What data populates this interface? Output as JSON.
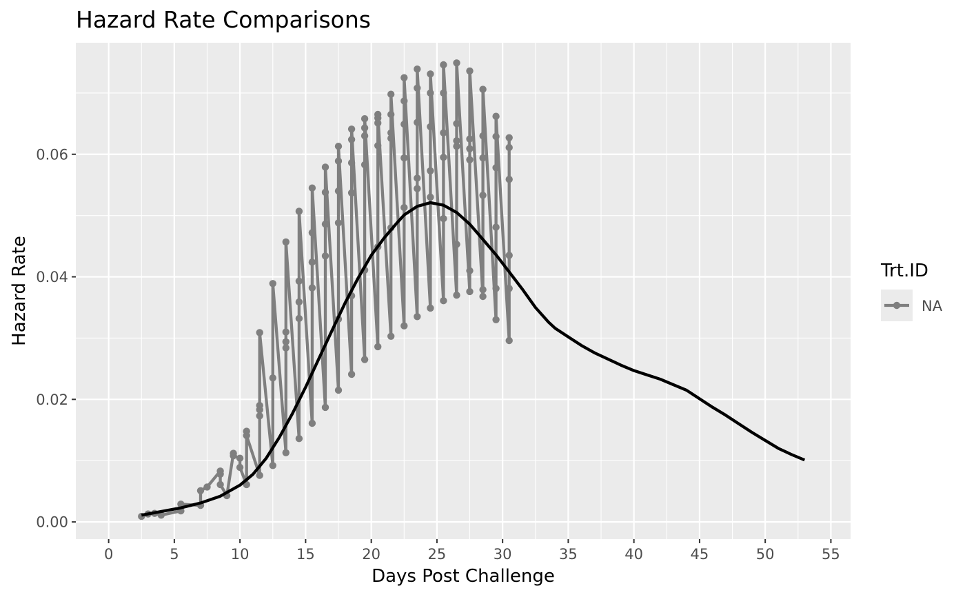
{
  "chart_data": {
    "type": "line",
    "title": "Hazard Rate Comparisons",
    "xlabel": "Days Post Challenge",
    "ylabel": "Hazard Rate",
    "xlim": [
      -2.5,
      56.5
    ],
    "ylim": [
      -0.0028,
      0.0782
    ],
    "x_ticks": [
      0,
      5,
      10,
      15,
      20,
      25,
      30,
      35,
      40,
      45,
      50,
      55
    ],
    "x_tick_labels": [
      "0",
      "5",
      "10",
      "15",
      "20",
      "25",
      "30",
      "35",
      "40",
      "45",
      "50",
      "55"
    ],
    "y_ticks": [
      0,
      0.02,
      0.04,
      0.06
    ],
    "y_tick_labels": [
      "0.00",
      "0.02",
      "0.04",
      "0.06"
    ],
    "grid": true,
    "background": "#ebebeb",
    "legend": {
      "title": "Trt.ID",
      "position": "right",
      "entries": [
        "NA"
      ]
    },
    "series": [
      {
        "name": "NA",
        "style": "line+points",
        "color": "#7f7f7f",
        "points": [
          [
            2.5,
            0.0009
          ],
          [
            3.0,
            0.0013
          ],
          [
            3.5,
            0.0014
          ],
          [
            4.0,
            0.0011
          ],
          [
            5.5,
            0.0018
          ],
          [
            5.5,
            0.0029
          ],
          [
            7.0,
            0.0027
          ],
          [
            7.0,
            0.0051
          ],
          [
            7.5,
            0.0057
          ],
          [
            8.5,
            0.0083
          ],
          [
            8.5,
            0.0078
          ],
          [
            8.5,
            0.0061
          ],
          [
            9.0,
            0.0043
          ],
          [
            9.5,
            0.0112
          ],
          [
            9.5,
            0.0108
          ],
          [
            10.0,
            0.0104
          ],
          [
            10.0,
            0.0089
          ],
          [
            10.5,
            0.0061
          ],
          [
            10.5,
            0.0148
          ],
          [
            10.5,
            0.0141
          ],
          [
            11.5,
            0.0076
          ],
          [
            11.5,
            0.0173
          ],
          [
            11.5,
            0.0183
          ],
          [
            11.5,
            0.019
          ],
          [
            11.5,
            0.0309
          ],
          [
            12.5,
            0.0092
          ],
          [
            12.5,
            0.0235
          ],
          [
            12.5,
            0.0389
          ],
          [
            13.5,
            0.0113
          ],
          [
            13.5,
            0.0284
          ],
          [
            13.5,
            0.0294
          ],
          [
            13.5,
            0.031
          ],
          [
            13.5,
            0.0457
          ],
          [
            14.5,
            0.0136
          ],
          [
            14.5,
            0.0332
          ],
          [
            14.5,
            0.0359
          ],
          [
            14.5,
            0.0393
          ],
          [
            14.5,
            0.0507
          ],
          [
            15.5,
            0.0161
          ],
          [
            15.5,
            0.0382
          ],
          [
            15.5,
            0.0424
          ],
          [
            15.5,
            0.0472
          ],
          [
            15.5,
            0.0545
          ],
          [
            16.5,
            0.0187
          ],
          [
            16.5,
            0.0434
          ],
          [
            16.5,
            0.0486
          ],
          [
            16.5,
            0.0538
          ],
          [
            16.5,
            0.0579
          ],
          [
            17.5,
            0.0215
          ],
          [
            17.5,
            0.0331
          ],
          [
            17.5,
            0.0488
          ],
          [
            17.5,
            0.054
          ],
          [
            17.5,
            0.0589
          ],
          [
            17.5,
            0.0613
          ],
          [
            18.5,
            0.0241
          ],
          [
            18.5,
            0.0369
          ],
          [
            18.5,
            0.0537
          ],
          [
            18.5,
            0.0586
          ],
          [
            18.5,
            0.0624
          ],
          [
            18.5,
            0.0641
          ],
          [
            19.5,
            0.0265
          ],
          [
            19.5,
            0.0411
          ],
          [
            19.5,
            0.0583
          ],
          [
            19.5,
            0.063
          ],
          [
            19.5,
            0.0643
          ],
          [
            19.5,
            0.0658
          ],
          [
            20.5,
            0.0286
          ],
          [
            20.5,
            0.0449
          ],
          [
            20.5,
            0.0614
          ],
          [
            20.5,
            0.0651
          ],
          [
            20.5,
            0.0659
          ],
          [
            20.5,
            0.0665
          ],
          [
            21.5,
            0.0303
          ],
          [
            21.5,
            0.048
          ],
          [
            21.5,
            0.0626
          ],
          [
            21.5,
            0.0635
          ],
          [
            21.5,
            0.0665
          ],
          [
            21.5,
            0.0698
          ],
          [
            22.5,
            0.032
          ],
          [
            22.5,
            0.0513
          ],
          [
            22.5,
            0.0594
          ],
          [
            22.5,
            0.0649
          ],
          [
            22.5,
            0.0687
          ],
          [
            22.5,
            0.0725
          ],
          [
            23.5,
            0.0335
          ],
          [
            23.5,
            0.0544
          ],
          [
            23.5,
            0.0561
          ],
          [
            23.5,
            0.0652
          ],
          [
            23.5,
            0.0708
          ],
          [
            23.5,
            0.0739
          ],
          [
            24.5,
            0.0349
          ],
          [
            24.5,
            0.053
          ],
          [
            24.5,
            0.0573
          ],
          [
            24.5,
            0.0645
          ],
          [
            24.5,
            0.07
          ],
          [
            24.5,
            0.0731
          ],
          [
            25.5,
            0.0361
          ],
          [
            25.5,
            0.0495
          ],
          [
            25.5,
            0.0595
          ],
          [
            25.5,
            0.0635
          ],
          [
            25.5,
            0.07
          ],
          [
            25.5,
            0.0746
          ],
          [
            26.5,
            0.037
          ],
          [
            26.5,
            0.0453
          ],
          [
            26.5,
            0.0613
          ],
          [
            26.5,
            0.0622
          ],
          [
            26.5,
            0.065
          ],
          [
            26.5,
            0.0749
          ],
          [
            27.5,
            0.0376
          ],
          [
            27.5,
            0.041
          ],
          [
            27.5,
            0.0591
          ],
          [
            27.5,
            0.0609
          ],
          [
            27.5,
            0.0625
          ],
          [
            27.5,
            0.0736
          ],
          [
            28.5,
            0.0368
          ],
          [
            28.5,
            0.0379
          ],
          [
            28.5,
            0.0533
          ],
          [
            28.5,
            0.0594
          ],
          [
            28.5,
            0.063
          ],
          [
            28.5,
            0.0706
          ],
          [
            29.5,
            0.033
          ],
          [
            29.5,
            0.0381
          ],
          [
            29.5,
            0.0481
          ],
          [
            29.5,
            0.0578
          ],
          [
            29.5,
            0.0629
          ],
          [
            29.5,
            0.0662
          ],
          [
            30.5,
            0.0296
          ],
          [
            30.5,
            0.0381
          ],
          [
            30.5,
            0.0435
          ],
          [
            30.5,
            0.0559
          ],
          [
            30.5,
            0.0611
          ],
          [
            30.5,
            0.0627
          ]
        ]
      },
      {
        "name": "",
        "style": "smooth-line",
        "color": "#000000",
        "points": [
          [
            2.5,
            0.0011
          ],
          [
            4.0,
            0.0017
          ],
          [
            5.5,
            0.0023
          ],
          [
            7.0,
            0.0031
          ],
          [
            8.5,
            0.0042
          ],
          [
            10.0,
            0.006
          ],
          [
            11.0,
            0.0078
          ],
          [
            12.0,
            0.0104
          ],
          [
            13.0,
            0.0138
          ],
          [
            14.0,
            0.0177
          ],
          [
            15.0,
            0.022
          ],
          [
            16.0,
            0.0266
          ],
          [
            17.0,
            0.0312
          ],
          [
            18.0,
            0.0357
          ],
          [
            19.0,
            0.0398
          ],
          [
            20.0,
            0.0435
          ],
          [
            21.0,
            0.0464
          ],
          [
            22.0,
            0.0489
          ],
          [
            22.5,
            0.0501
          ],
          [
            23.5,
            0.0515
          ],
          [
            24.5,
            0.0521
          ],
          [
            25.5,
            0.0517
          ],
          [
            26.5,
            0.0505
          ],
          [
            27.5,
            0.0486
          ],
          [
            28.5,
            0.0461
          ],
          [
            29.5,
            0.0436
          ],
          [
            30.5,
            0.0408
          ],
          [
            31.5,
            0.038
          ],
          [
            32.5,
            0.035
          ],
          [
            33.5,
            0.0326
          ],
          [
            34.0,
            0.0316
          ],
          [
            35.0,
            0.0302
          ],
          [
            36.0,
            0.0288
          ],
          [
            37.0,
            0.0276
          ],
          [
            38.0,
            0.0266
          ],
          [
            39.0,
            0.0256
          ],
          [
            40.0,
            0.0247
          ],
          [
            41.0,
            0.024
          ],
          [
            42.0,
            0.0233
          ],
          [
            43.0,
            0.0224
          ],
          [
            44.0,
            0.0215
          ],
          [
            45.0,
            0.0201
          ],
          [
            46.0,
            0.0187
          ],
          [
            47.0,
            0.0174
          ],
          [
            48.0,
            0.016
          ],
          [
            49.0,
            0.0146
          ],
          [
            50.0,
            0.0133
          ],
          [
            51.0,
            0.012
          ],
          [
            52.0,
            0.011
          ],
          [
            53.0,
            0.0101
          ]
        ]
      }
    ]
  }
}
